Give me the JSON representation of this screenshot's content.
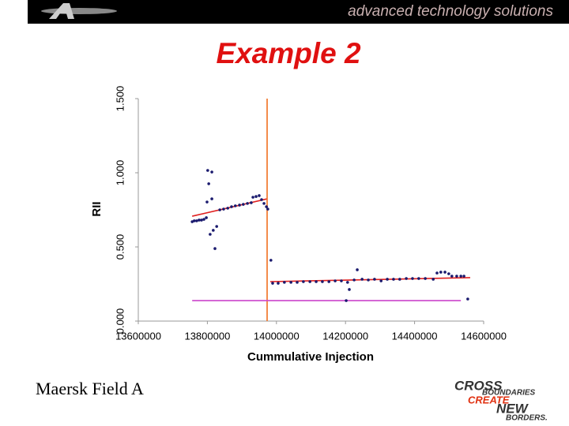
{
  "header": {
    "tagline": "advanced technology solutions"
  },
  "chart_data": {
    "type": "scatter",
    "title": "Example 2",
    "x_label": "Cummulative Injection",
    "y_label": "RII",
    "xlim": [
      13600000,
      14600000
    ],
    "xticks": [
      13600000,
      13800000,
      14000000,
      14200000,
      14400000,
      14600000
    ],
    "ylim": [
      0,
      1.5
    ],
    "yticks": [
      {
        "value": 0,
        "label": "0.000"
      },
      {
        "value": 0.5,
        "label": "0.500"
      },
      {
        "value": 1,
        "label": "1.000"
      },
      {
        "value": 1.5,
        "label": "1.500"
      }
    ],
    "grid": false,
    "series": [
      {
        "type": "scatter",
        "color": "#1a1a6e",
        "x": [
          13756000,
          13762000,
          13769000,
          13776000,
          13783000,
          13790000,
          13797000,
          13801000,
          13813000,
          13804000,
          13799000,
          13813000,
          13808000,
          13817000,
          13827000,
          13822000,
          13836000,
          13847000,
          13859000,
          13870000,
          13881000,
          13893000,
          13904000,
          13916000,
          13927000,
          13932000,
          13941000,
          13950000,
          13957000,
          13964000,
          13971000,
          13975000,
          13984000,
          13989000,
          14005000,
          14023000,
          14042000,
          14060000,
          14078000,
          14097000,
          14115000,
          14133000,
          14152000,
          14170000,
          14188000,
          14206000,
          14211000,
          14202000,
          14225000,
          14234000,
          14248000,
          14266000,
          14284000,
          14303000,
          14321000,
          14339000,
          14357000,
          14376000,
          14394000,
          14412000,
          14431000,
          14454000,
          14465000,
          14476000,
          14488000,
          14499000,
          14508000,
          14522000,
          14534000,
          14543000,
          14554000
        ],
        "values": [
          0.67,
          0.676,
          0.676,
          0.681,
          0.681,
          0.686,
          0.697,
          1.016,
          1.005,
          0.926,
          0.803,
          0.824,
          0.585,
          0.612,
          0.638,
          0.489,
          0.75,
          0.755,
          0.761,
          0.771,
          0.777,
          0.782,
          0.787,
          0.793,
          0.798,
          0.835,
          0.84,
          0.846,
          0.819,
          0.793,
          0.771,
          0.755,
          0.41,
          0.255,
          0.255,
          0.261,
          0.261,
          0.261,
          0.266,
          0.266,
          0.266,
          0.266,
          0.266,
          0.271,
          0.271,
          0.261,
          0.213,
          0.138,
          0.277,
          0.346,
          0.282,
          0.277,
          0.282,
          0.271,
          0.282,
          0.282,
          0.282,
          0.287,
          0.287,
          0.287,
          0.287,
          0.282,
          0.324,
          0.33,
          0.33,
          0.319,
          0.303,
          0.303,
          0.303,
          0.303,
          0.149
        ]
      },
      {
        "type": "line",
        "color": "#e02020",
        "x": [
          13756000,
          13973000
        ],
        "values": [
          0.707,
          0.824
        ]
      },
      {
        "type": "line",
        "color": "#e02020",
        "x": [
          13982000,
          14561000
        ],
        "values": [
          0.266,
          0.293
        ]
      },
      {
        "type": "line",
        "color": "#f07020",
        "x": [
          13973000,
          13973000
        ],
        "values": [
          0,
          1.5
        ]
      },
      {
        "type": "line",
        "color": "#cc44cc",
        "x": [
          13756000,
          14534000
        ],
        "values": [
          0.138,
          0.138
        ]
      }
    ]
  },
  "footer": {
    "caption": "Maersk Field A",
    "logo": [
      "CROSS",
      "BOUNDARIES",
      "CREATE",
      "NEW",
      "BORDERS."
    ]
  }
}
